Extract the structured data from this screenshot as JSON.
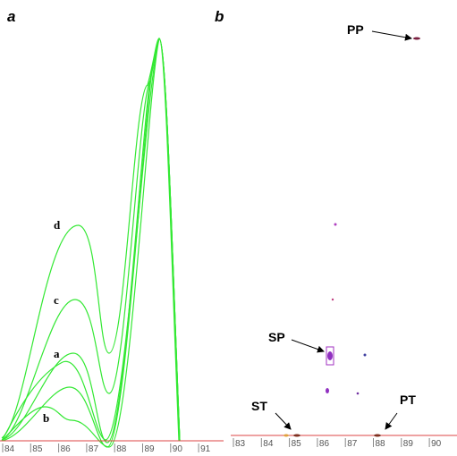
{
  "panels": [
    {
      "label": "a",
      "curve_labels": [
        "d",
        "c",
        "a",
        "b"
      ],
      "ticks": [
        "84",
        "85",
        "86",
        "87",
        "88",
        "89",
        "90",
        "91"
      ]
    },
    {
      "label": "b",
      "annotations": [
        "PP",
        "SP",
        "ST",
        "PT"
      ],
      "ticks": [
        "83",
        "84",
        "85",
        "86",
        "87",
        "88",
        "89",
        "90"
      ]
    }
  ]
}
